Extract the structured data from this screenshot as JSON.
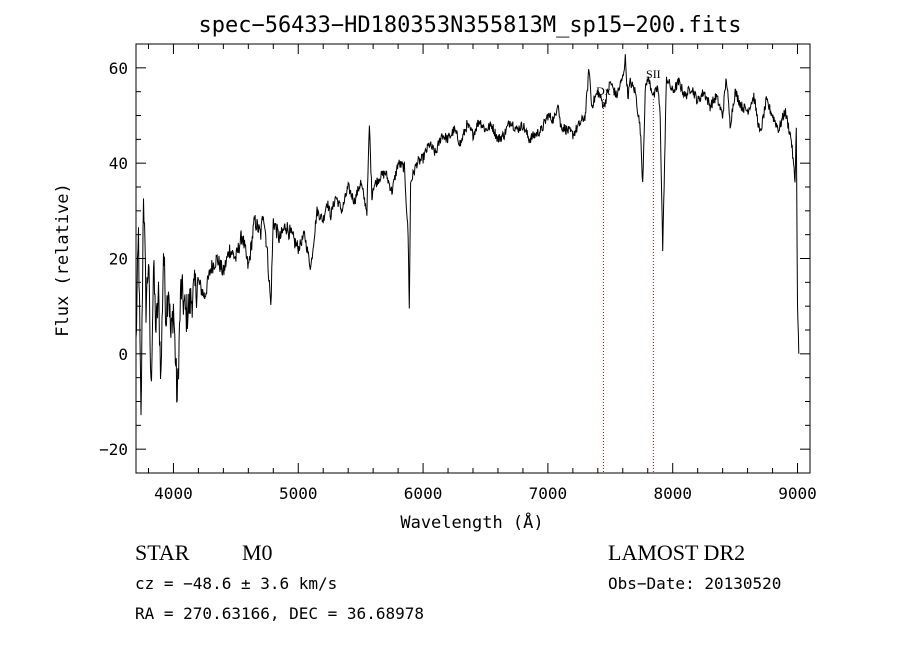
{
  "chart_data": {
    "type": "line",
    "title": "spec−56433−HD180353N355813M_sp15−200.fits",
    "xlabel": "Wavelength (Å)",
    "ylabel": "Flux (relative)",
    "xlim": [
      3700,
      9100
    ],
    "ylim": [
      -25,
      65
    ],
    "xticks": [
      4000,
      5000,
      6000,
      7000,
      8000,
      9000
    ],
    "xtick_labels": [
      "4000",
      "5000",
      "6000",
      "7000",
      "8000",
      "9000"
    ],
    "yticks": [
      -20,
      0,
      20,
      40,
      60
    ],
    "ytick_labels": [
      "−20",
      "0",
      "20",
      "40",
      "60"
    ],
    "grid": false,
    "series": [
      {
        "x": [
          3700,
          3720,
          3740,
          3760,
          3780,
          3800,
          3820,
          3840,
          3860,
          3880,
          3900,
          3920,
          3940,
          3960,
          3980,
          4000,
          4030,
          4060,
          4100,
          4150,
          4200,
          4250,
          4300,
          4350,
          4400,
          4450,
          4500,
          4550,
          4600,
          4650,
          4700,
          4720,
          4750,
          4780,
          4800,
          4850,
          4900,
          5000,
          5050,
          5100,
          5150,
          5200,
          5230,
          5260,
          5300,
          5350,
          5400,
          5450,
          5500,
          5550,
          5570,
          5590,
          5600,
          5650,
          5700,
          5750,
          5800,
          5850,
          5880,
          5890,
          5900,
          5950,
          6000,
          6050,
          6100,
          6150,
          6200,
          6250,
          6300,
          6350,
          6400,
          6450,
          6500,
          6550,
          6600,
          6650,
          6700,
          6750,
          6800,
          6850,
          6900,
          6950,
          7000,
          7050,
          7080,
          7100,
          7150,
          7200,
          7250,
          7300,
          7330,
          7350,
          7400,
          7450,
          7500,
          7550,
          7600,
          7620,
          7640,
          7660,
          7700,
          7740,
          7760,
          7780,
          7800,
          7850,
          7880,
          7900,
          7920,
          7950,
          8000,
          8050,
          8100,
          8150,
          8200,
          8250,
          8300,
          8350,
          8400,
          8430,
          8460,
          8500,
          8550,
          8600,
          8650,
          8700,
          8750,
          8800,
          8850,
          8900,
          8950,
          8980,
          8990,
          9000,
          9010
        ],
        "y": [
          2,
          25,
          -15,
          35,
          10,
          20,
          -8,
          18,
          5,
          12,
          -5,
          22,
          8,
          15,
          3,
          10,
          -10,
          14,
          8,
          12,
          15,
          12,
          18,
          20,
          17,
          22,
          20,
          25,
          18,
          28,
          25,
          30,
          22,
          10,
          28,
          24,
          27,
          22,
          25,
          18,
          30,
          28,
          32,
          29,
          33,
          30,
          35,
          32,
          36,
          30,
          48,
          33,
          35,
          37,
          38,
          34,
          40,
          39,
          25,
          10,
          36,
          40,
          41,
          44,
          42,
          46,
          45,
          47,
          44,
          48,
          46,
          49,
          47,
          48,
          45,
          46,
          49,
          47,
          48,
          45,
          46,
          47,
          50,
          49,
          53,
          48,
          47,
          46,
          48,
          50,
          60,
          52,
          55,
          52,
          57,
          54,
          58,
          62,
          54,
          57,
          55,
          47,
          36,
          55,
          58,
          54,
          56,
          50,
          22,
          58,
          55,
          57,
          54,
          56,
          53,
          55,
          52,
          54,
          50,
          58,
          48,
          55,
          52,
          51,
          54,
          46,
          53,
          50,
          47,
          51,
          45,
          36,
          48,
          10,
          0
        ]
      }
    ],
    "annotations": [
      {
        "label": "Dx",
        "x": 7445
      },
      {
        "label": "SII",
        "x": 7845
      }
    ]
  },
  "info": {
    "object_class": "STAR",
    "subclass": "M0",
    "survey": "LAMOST DR2",
    "redshift_line": "cz = −48.6 ± 3.6 km/s",
    "obs_date": "Obs−Date: 20130520",
    "coords": "RA = 270.63166, DEC =  36.68978"
  },
  "colors": {
    "line": "#000000",
    "marker_line": "#8b1a1a",
    "background": "#ffffff"
  }
}
